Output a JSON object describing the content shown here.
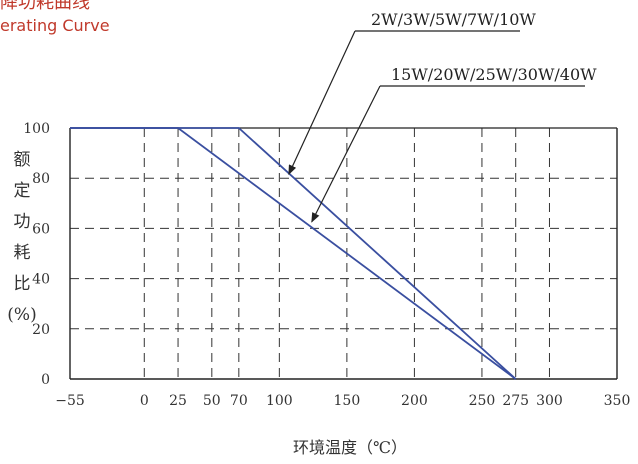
{
  "header": {
    "title_cn_fragment": "降功耗曲线",
    "title_en_fragment": "erating Curve"
  },
  "chart_data": {
    "type": "line",
    "ylabel_chars": [
      "额",
      "定",
      "功",
      "耗",
      "比",
      "(%)"
    ],
    "xlabel": "环境温度（℃）",
    "x_ticks": [
      -55,
      0,
      25,
      50,
      70,
      100,
      150,
      200,
      250,
      275,
      300,
      350
    ],
    "y_ticks": [
      0,
      20,
      40,
      60,
      80,
      100
    ],
    "xlim": [
      -55,
      350
    ],
    "ylim": [
      0,
      100
    ],
    "grid": true,
    "series": [
      {
        "name": "2W/3W/5W/7W/10W",
        "x": [
          -55,
          70,
          275
        ],
        "y": [
          100,
          100,
          0
        ],
        "color": "#3a4fa0"
      },
      {
        "name": "15W/20W/25W/30W/40W",
        "x": [
          -55,
          25,
          275
        ],
        "y": [
          100,
          100,
          0
        ],
        "color": "#3a4fa0"
      }
    ],
    "annotations": [
      {
        "text": "2W/3W/5W/7W/10W",
        "points_to": [
          107,
          80
        ]
      },
      {
        "text": "15W/20W/25W/30W/40W",
        "points_to": [
          124,
          61
        ]
      }
    ]
  }
}
